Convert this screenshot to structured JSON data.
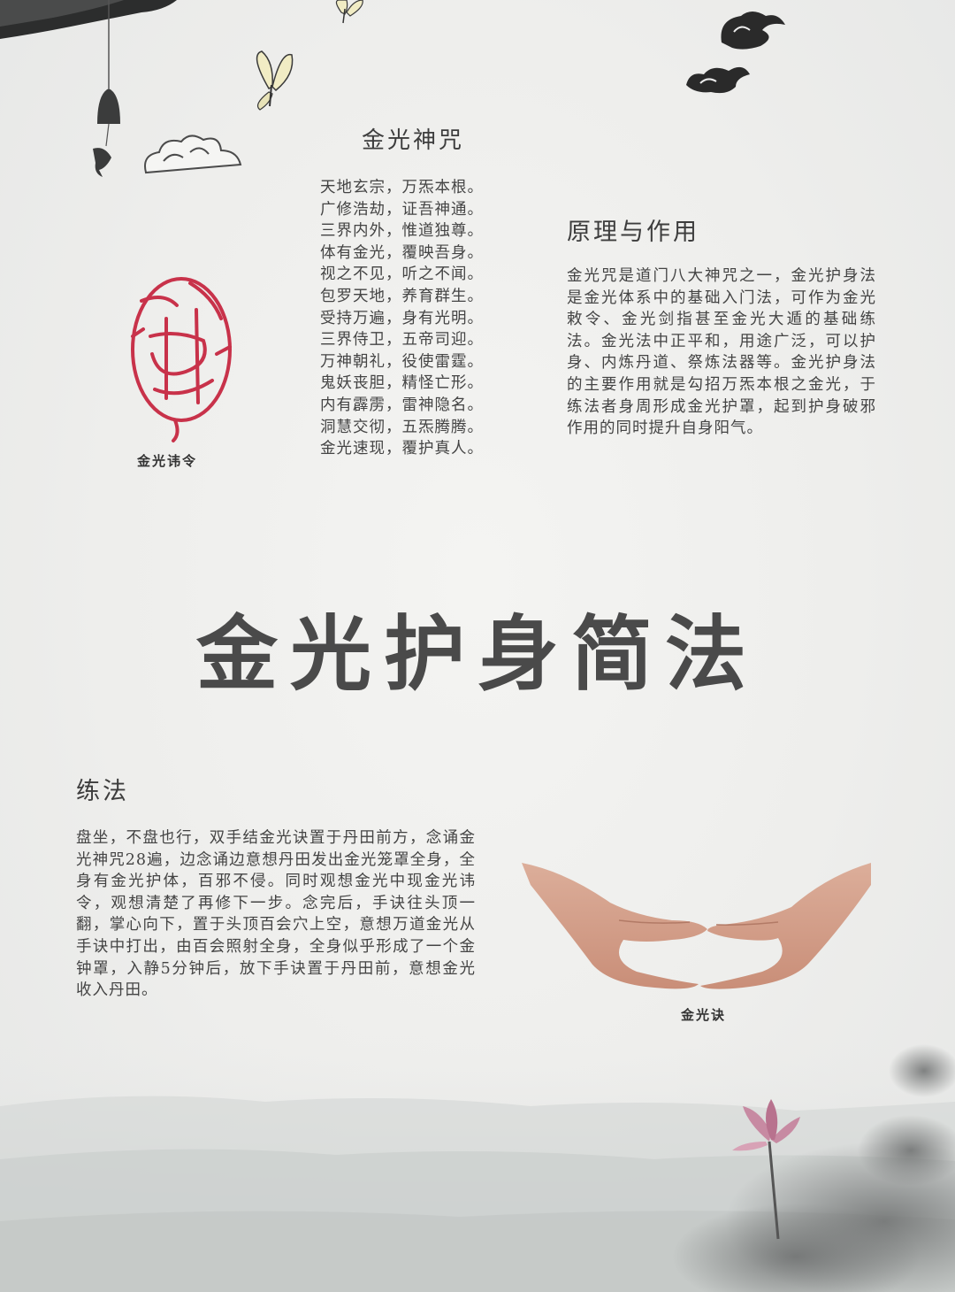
{
  "poem": {
    "title": "金光神咒",
    "lines": [
      "天地玄宗，万炁本根。",
      "广修浩劫，证吾神通。",
      "三界内外，惟道独尊。",
      "体有金光，覆映吾身。",
      "视之不见，听之不闻。",
      "包罗天地，养育群生。",
      "受持万遍，身有光明。",
      "三界侍卫，五帝司迎。",
      "万神朝礼，役使雷霆。",
      "鬼妖丧胆，精怪亡形。",
      "内有霹雳，雷神隐名。",
      "洞慧交彻，五炁腾腾。",
      "金光速现，覆护真人。"
    ]
  },
  "principle": {
    "title": "原理与作用",
    "body": "金光咒是道门八大神咒之一，金光护身法是金光体系中的基础入门法，可作为金光敕令、金光剑指甚至金光大遁的基础练法。金光法中正平和，用途广泛，可以护身、内炼丹道、祭炼法器等。金光护身法的主要作用就是勾招万炁本根之金光，于练法者身周形成金光护罩，起到护身破邪作用的同时提升自身阳气。"
  },
  "seal": {
    "caption": "金光讳令"
  },
  "main_title": "金光护身简法",
  "practice": {
    "title": "练法",
    "body": "盘坐，不盘也行，双手结金光诀置于丹田前方，念诵金光神咒28遍，边念诵边意想丹田发出金光笼罩全身，全身有金光护体，百邪不侵。同时观想金光中现金光讳令，观想清楚了再修下一步。念完后，手诀往头顶一翻，掌心向下，置于头顶百会穴上空，意想万道金光从手诀中打出，由百会照射全身，全身似乎形成了一个金钟罩，入静5分钟后，放下手诀置于丹田前，意想金光收入丹田。"
  },
  "hands": {
    "caption": "金光诀"
  },
  "colors": {
    "background": "#eeeeec",
    "text": "#444444",
    "seal_red": "#c8324a",
    "ink": "#2a2a2a",
    "lotus_pink": "#c78aa2"
  },
  "icons": [
    "wind-bell-icon",
    "butterfly-icon",
    "auspicious-cloud-icon",
    "talisman-seal-icon",
    "lotus-icon",
    "hand-mudra-image"
  ]
}
